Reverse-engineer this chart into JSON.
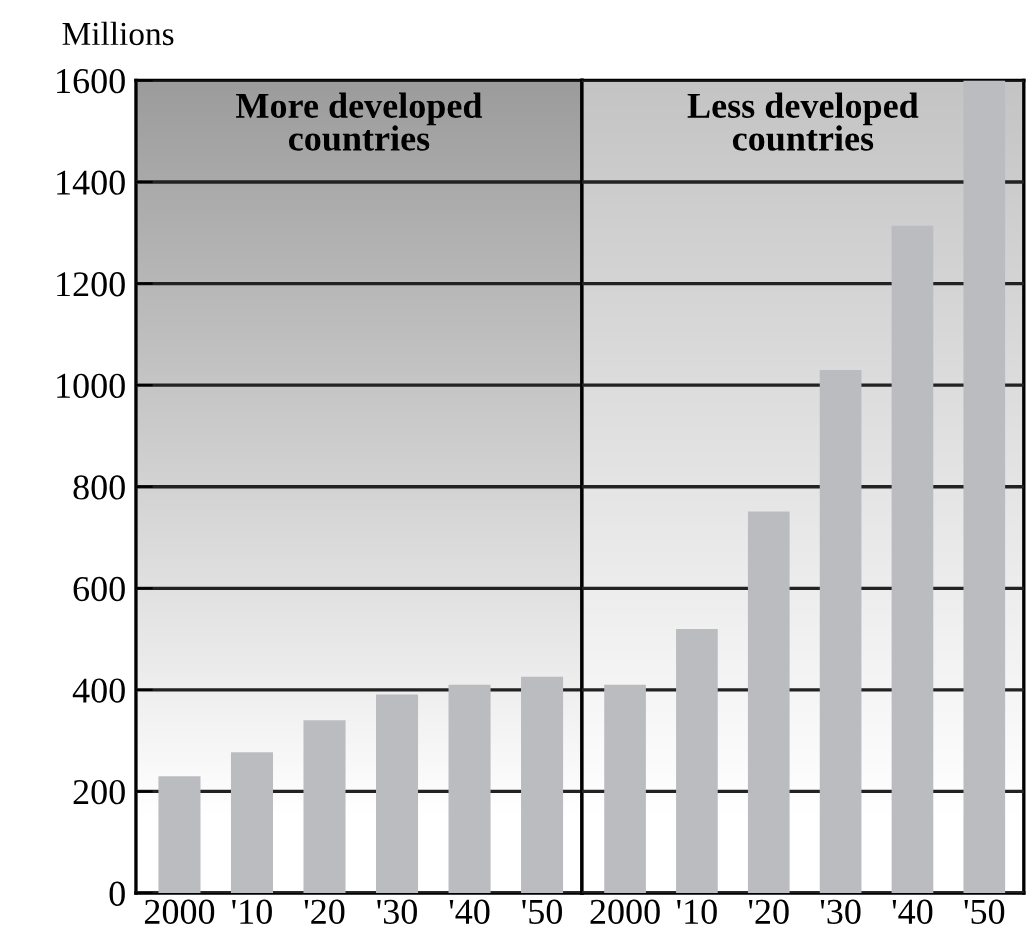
{
  "chart_data": [
    {
      "type": "bar",
      "title": "More developed\ncountries",
      "ylabel": "Millions",
      "categories": [
        "2000",
        "'10",
        "'20",
        "'30",
        "'40",
        "'50"
      ],
      "series": [
        {
          "color": "#bbbcc0",
          "values": [
            230,
            277,
            340,
            391,
            410,
            426
          ]
        }
      ],
      "ylim": [
        0,
        1600
      ],
      "yticks": [
        0,
        200,
        400,
        600,
        800,
        1000,
        1200,
        1400,
        1600
      ],
      "grid": "y"
    },
    {
      "type": "bar",
      "title": "Less developed\ncountries",
      "categories": [
        "2000",
        "'10",
        "'20",
        "'30",
        "'40",
        "'50"
      ],
      "series": [
        {
          "color": "#bbbcc0",
          "values": [
            410,
            520,
            751,
            1030,
            1314,
            1600
          ]
        }
      ],
      "ylim": [
        0,
        1600
      ],
      "yticks": [
        0,
        200,
        400,
        600,
        800,
        1000,
        1200,
        1400,
        1600
      ],
      "grid": "y",
      "tick_labels": "x"
    }
  ]
}
